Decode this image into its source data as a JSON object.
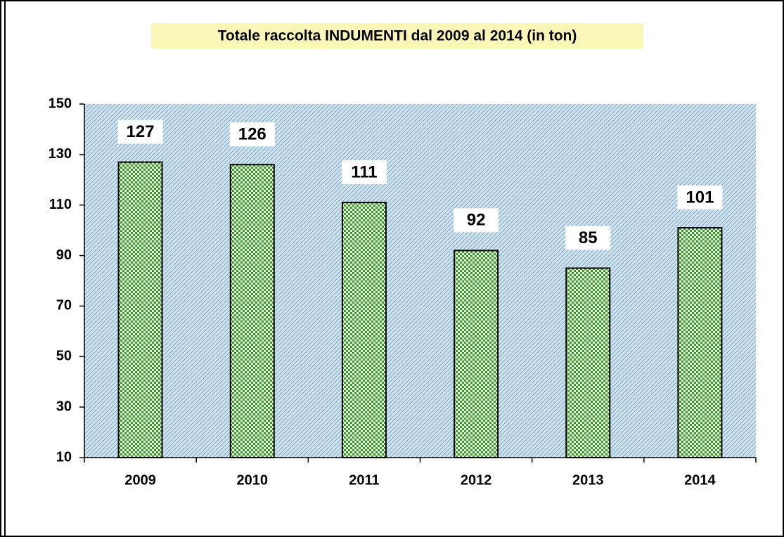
{
  "chart_data": {
    "type": "bar",
    "title": "Totale raccolta INDUMENTI  dal 2009 al 2014  (in ton)",
    "categories": [
      "2009",
      "2010",
      "2011",
      "2012",
      "2013",
      "2014"
    ],
    "values": [
      127,
      126,
      111,
      92,
      85,
      101
    ],
    "color": "#3a9a2a",
    "ylim": [
      10,
      150
    ],
    "yticks": [
      10,
      30,
      50,
      70,
      90,
      110,
      130,
      150
    ],
    "grid": false
  }
}
